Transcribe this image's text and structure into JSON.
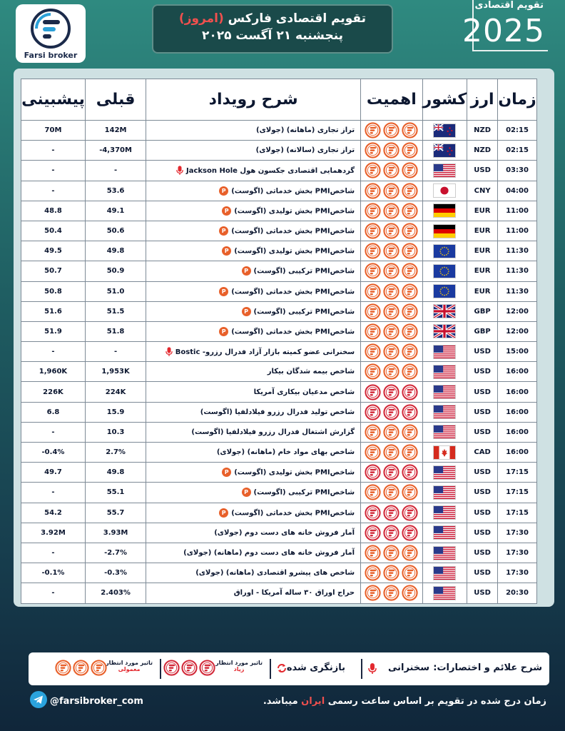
{
  "header": {
    "logo_text": "Farsi broker",
    "title_part1": "تقویم اقتصادی فارکس",
    "title_highlight": "(امروز)",
    "date_line": "پنجشنبه ۲۱ آگست ۲۰۲۵",
    "year_label": "تقویم اقتصادی",
    "year": "2025"
  },
  "columns": {
    "time": "زمان",
    "currency": "ارز",
    "country": "کشور",
    "importance": "اهمیت",
    "description": "شرح رویداد",
    "previous": "قبلی",
    "forecast": "پیشبینی"
  },
  "colors": {
    "orange_icon": "#e8602a",
    "red_icon": "#d22a3a",
    "accent_red": "#f0504e"
  },
  "rows": [
    {
      "time": "02:15",
      "currency": "NZD",
      "flag": "nz",
      "importance": "normal",
      "desc": "تراز تجاری (ماهانه) (جولای)",
      "badge": "",
      "previous": "142M",
      "forecast": "70M"
    },
    {
      "time": "02:15",
      "currency": "NZD",
      "flag": "nz",
      "importance": "normal",
      "desc": "تراز تجاری (سالانه) (جولای)",
      "badge": "",
      "previous": "-4,370M",
      "forecast": "-"
    },
    {
      "time": "03:30",
      "currency": "USD",
      "flag": "us",
      "importance": "normal",
      "desc": "گردهمایی اقتصادی جکسون هول Jackson Hole",
      "badge": "mic",
      "previous": "-",
      "forecast": "-"
    },
    {
      "time": "04:00",
      "currency": "CNY",
      "flag": "jp",
      "importance": "normal",
      "desc": "شاخصPMI بخش خدماتی (اگوست)",
      "badge": "P",
      "previous": "53.6",
      "forecast": "-"
    },
    {
      "time": "11:00",
      "currency": "EUR",
      "flag": "de",
      "importance": "normal",
      "desc": "شاخصPMI بخش تولیدی (اگوست)",
      "badge": "P",
      "previous": "49.1",
      "forecast": "48.8"
    },
    {
      "time": "11:00",
      "currency": "EUR",
      "flag": "de",
      "importance": "normal",
      "desc": "شاخصPMI بخش خدماتی (اگوست)",
      "badge": "P",
      "previous": "50.6",
      "forecast": "50.4"
    },
    {
      "time": "11:30",
      "currency": "EUR",
      "flag": "eu",
      "importance": "normal",
      "desc": "شاخصPMI بخش تولیدی (اگوست)",
      "badge": "P",
      "previous": "49.8",
      "forecast": "49.5"
    },
    {
      "time": "11:30",
      "currency": "EUR",
      "flag": "eu",
      "importance": "normal",
      "desc": "شاخصPMI ترکیبی (اگوست)",
      "badge": "P",
      "previous": "50.9",
      "forecast": "50.7"
    },
    {
      "time": "11:30",
      "currency": "EUR",
      "flag": "eu",
      "importance": "normal",
      "desc": "شاخصPMI بخش خدماتی (اگوست)",
      "badge": "P",
      "previous": "51.0",
      "forecast": "50.8"
    },
    {
      "time": "12:00",
      "currency": "GBP",
      "flag": "gb",
      "importance": "normal",
      "desc": "شاخصPMI ترکیبی (اگوست)",
      "badge": "P",
      "previous": "51.5",
      "forecast": "51.6"
    },
    {
      "time": "12:00",
      "currency": "GBP",
      "flag": "gb",
      "importance": "normal",
      "desc": "شاخصPMI بخش خدماتی (اگوست)",
      "badge": "P",
      "previous": "51.8",
      "forecast": "51.9"
    },
    {
      "time": "15:00",
      "currency": "USD",
      "flag": "us",
      "importance": "normal",
      "desc": "سخنرانی عضو کمیته بازار آزاد فدرال رزرو- Bostic",
      "badge": "mic",
      "previous": "-",
      "forecast": "-"
    },
    {
      "time": "16:00",
      "currency": "USD",
      "flag": "us",
      "importance": "normal",
      "desc": "شاخص بیمه شدگان بیکار",
      "badge": "",
      "previous": "1,953K",
      "forecast": "1,960K"
    },
    {
      "time": "16:00",
      "currency": "USD",
      "flag": "us",
      "importance": "high",
      "desc": "شاخص مدعیان بیکاری آمریکا",
      "badge": "",
      "previous": "224K",
      "forecast": "226K"
    },
    {
      "time": "16:00",
      "currency": "USD",
      "flag": "us",
      "importance": "high",
      "desc": "شاخص تولید فدرال رزرو فیلادلفیا (اگوست)",
      "badge": "",
      "previous": "15.9",
      "forecast": "6.8"
    },
    {
      "time": "16:00",
      "currency": "USD",
      "flag": "us",
      "importance": "normal",
      "desc": "گزارش اشتغال فدرال رزرو فیلادلفیا (اگوست)",
      "badge": "",
      "previous": "10.3",
      "forecast": "-"
    },
    {
      "time": "16:00",
      "currency": "CAD",
      "flag": "ca",
      "importance": "normal",
      "desc": "شاخص بهای مواد خام (ماهانه) (جولای)",
      "badge": "",
      "previous": "2.7%",
      "forecast": "-0.4%"
    },
    {
      "time": "17:15",
      "currency": "USD",
      "flag": "us",
      "importance": "high",
      "desc": "شاخصPMI بخش تولیدی (اگوست)",
      "badge": "P",
      "previous": "49.8",
      "forecast": "49.7"
    },
    {
      "time": "17:15",
      "currency": "USD",
      "flag": "us",
      "importance": "normal",
      "desc": "شاخصPMI ترکیبی (اگوست)",
      "badge": "P",
      "previous": "55.1",
      "forecast": "-"
    },
    {
      "time": "17:15",
      "currency": "USD",
      "flag": "us",
      "importance": "high",
      "desc": "شاخصPMI بخش خدماتی (اگوست)",
      "badge": "P",
      "previous": "55.7",
      "forecast": "54.2"
    },
    {
      "time": "17:30",
      "currency": "USD",
      "flag": "us",
      "importance": "high",
      "desc": "آمار فروش خانه های دست دوم (جولای)",
      "badge": "",
      "previous": "3.93M",
      "forecast": "3.92M"
    },
    {
      "time": "17:30",
      "currency": "USD",
      "flag": "us",
      "importance": "normal",
      "desc": "آمار فروش خانه های دست دوم (ماهانه) (جولای)",
      "badge": "",
      "previous": "-2.7%",
      "forecast": "-"
    },
    {
      "time": "17:30",
      "currency": "USD",
      "flag": "us",
      "importance": "normal",
      "desc": "شاخص های پیشرو اقتصادی (ماهانه) (جولای)",
      "badge": "",
      "previous": "-0.3%",
      "forecast": "-0.1%"
    },
    {
      "time": "20:30",
      "currency": "USD",
      "flag": "us",
      "importance": "normal",
      "desc": "حراج اوراق ۳۰ ساله آمریکا - اوراق",
      "badge": "",
      "previous": "2.403%",
      "forecast": "-"
    }
  ],
  "legend": {
    "title": "شرح علائم و اختصارات:",
    "speech": "سخنرانی",
    "revised": "بازنگری شده",
    "high_label": "تاثیر مورد انتظار",
    "high_sub": "زیاد",
    "normal_label": "تاثیر مورد انتظار",
    "normal_sub": "معمولی"
  },
  "footer": {
    "note_part1": "زمان درج شده در تقویم بر اساس ساعت رسمی",
    "note_highlight": "ایران",
    "note_part2": "میباشد.",
    "telegram": "@farsibroker_com"
  }
}
